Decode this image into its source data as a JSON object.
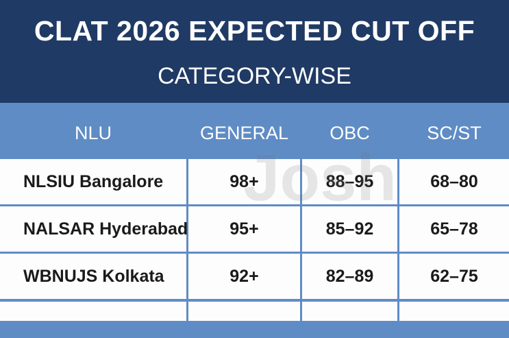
{
  "header": {
    "title": "CLAT 2026 EXPECTED CUT OFF",
    "subtitle": "CATEGORY-WISE"
  },
  "watermark": "Josh",
  "table": {
    "columns": [
      "NLU",
      "GENERAL",
      "OBC",
      "SC/ST"
    ],
    "rows": [
      [
        "NLSIU Bangalore",
        "98+",
        "88–95",
        "68–80"
      ],
      [
        "NALSAR Hyderabad",
        "95+",
        "85–92",
        "65–78"
      ],
      [
        "WBNUJS Kolkata",
        "92+",
        "82–89",
        "62–75"
      ]
    ]
  }
}
